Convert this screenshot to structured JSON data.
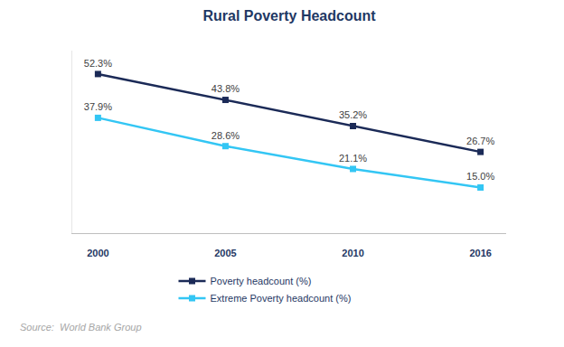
{
  "chart_data": {
    "type": "line",
    "title": "Rural Poverty Headcount",
    "categories": [
      "2000",
      "2005",
      "2010",
      "2016"
    ],
    "series": [
      {
        "name": "Poverty headcount (%)",
        "color": "#1b2a57",
        "marker": "square",
        "line_style": "solid",
        "values": [
          52.3,
          43.8,
          35.2,
          26.7
        ],
        "value_labels": [
          "52.3%",
          "43.8%",
          "35.2%",
          "26.7%"
        ]
      },
      {
        "name": "Extreme Poverty headcount (%)",
        "color": "#33c6f4",
        "marker": "square",
        "line_style": "solid",
        "values": [
          37.9,
          28.6,
          21.1,
          15.0
        ],
        "value_labels": [
          "37.9%",
          "28.6%",
          "21.1%",
          "15.0%"
        ]
      }
    ],
    "ylim": [
      0,
      60
    ],
    "tick_labels": "x",
    "grid": false,
    "legend": "bottom",
    "data_labels": true,
    "source": "Source:  World Bank Group"
  }
}
